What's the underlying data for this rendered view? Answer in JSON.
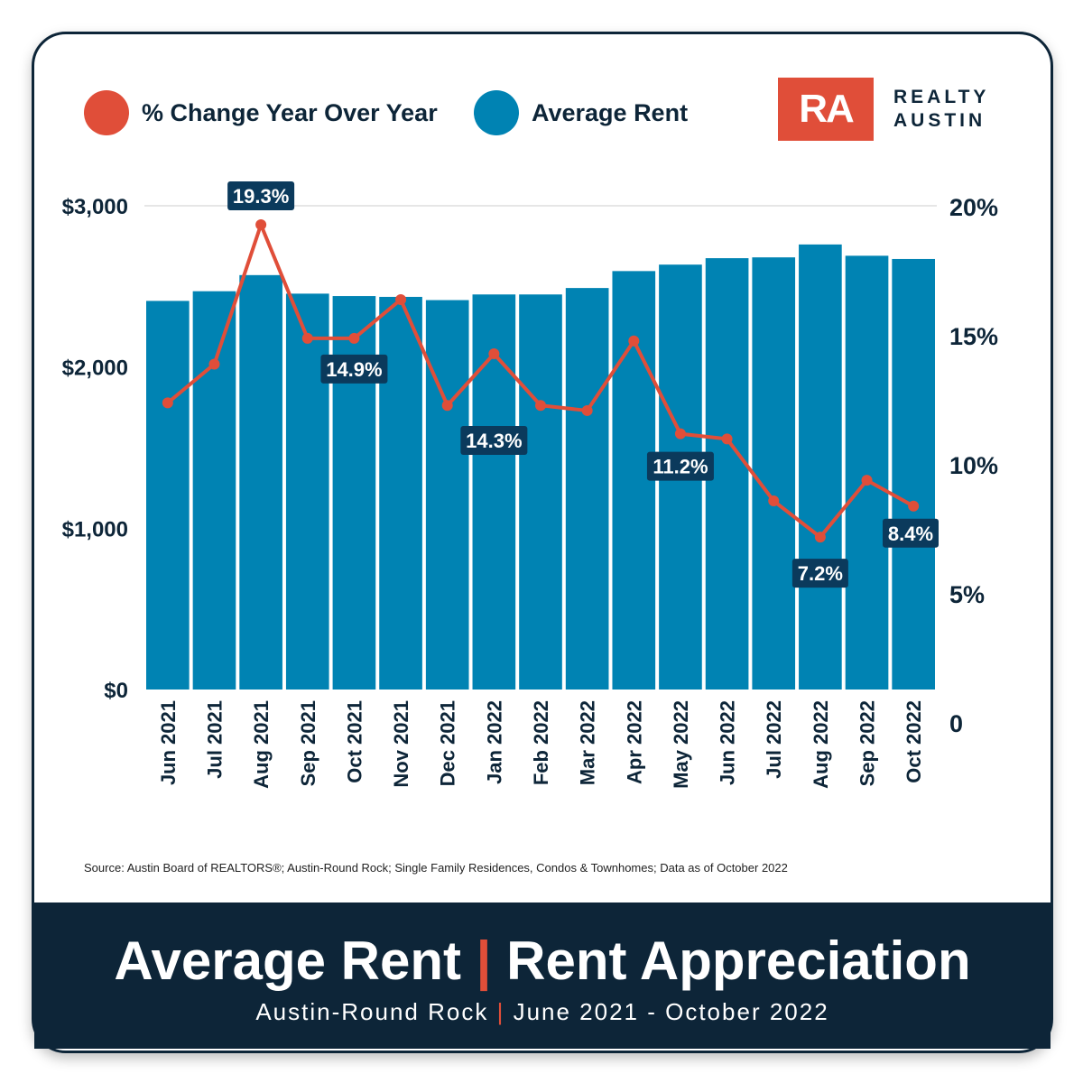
{
  "watermark": {
    "line1": "REALTY",
    "line2": "AUSTIN"
  },
  "legend": [
    {
      "label": "% Change Year Over Year",
      "color": "#e04e39"
    },
    {
      "label": "Average Rent",
      "color": "#0083b3"
    }
  ],
  "logo": {
    "mark": "RA",
    "line1": "REALTY",
    "line2": "AUSTIN"
  },
  "chart_data": {
    "type": "bar+line",
    "categories": [
      "Jun 2021",
      "Jul 2021",
      "Aug 2021",
      "Sep 2021",
      "Oct 2021",
      "Nov 2021",
      "Dec 2021",
      "Jan 2022",
      "Feb 2022",
      "Mar 2022",
      "Apr 2022",
      "May 2022",
      "Jun 2022",
      "Jul 2022",
      "Aug 2022",
      "Sep 2022",
      "Oct 2022"
    ],
    "series": [
      {
        "name": "Average Rent",
        "type": "bar",
        "axis": "left",
        "color": "#0083b3",
        "values": [
          2410,
          2470,
          2570,
          2455,
          2440,
          2435,
          2415,
          2450,
          2450,
          2490,
          2595,
          2635,
          2675,
          2680,
          2760,
          2690,
          2670
        ]
      },
      {
        "name": "% Change Year Over Year",
        "type": "line",
        "axis": "right",
        "color": "#e04e39",
        "values": [
          12.4,
          13.9,
          19.3,
          14.9,
          14.9,
          16.4,
          12.3,
          14.3,
          12.3,
          12.1,
          14.8,
          11.2,
          11.0,
          8.6,
          7.2,
          9.4,
          8.4
        ]
      }
    ],
    "left_axis": {
      "ylim": [
        0,
        3000
      ],
      "ticks": [
        "$0",
        "$1,000",
        "$2,000",
        "$3,000"
      ],
      "tick_values": [
        0,
        1000,
        2000,
        3000
      ]
    },
    "right_axis": {
      "ylim": [
        0,
        20
      ],
      "ticks": [
        "0",
        "5%",
        "10%",
        "15%",
        "20%"
      ],
      "tick_values": [
        0,
        5,
        10,
        15,
        20
      ]
    },
    "data_labels": [
      {
        "index": 2,
        "text": "19.3%"
      },
      {
        "index": 4,
        "text": "14.9%"
      },
      {
        "index": 7,
        "text": "14.3%"
      },
      {
        "index": 11,
        "text": "11.2%"
      },
      {
        "index": 14,
        "text": "7.2%"
      },
      {
        "index": 16,
        "text": "8.4%"
      }
    ],
    "label_color": "#0b3a5c",
    "grid": "top line only",
    "legend_position": "top-left"
  },
  "source": "Source: Austin Board of REALTORS®; Austin-Round Rock; Single Family Residences, Condos & Townhomes; Data as of October  2022",
  "footer": {
    "title_left": "Average Rent",
    "separator": "|",
    "title_right": "Rent Appreciation",
    "sub_left": "Austin-Round Rock",
    "sub_right": "June 2021 - October 2022",
    "bg": "#0d2538"
  }
}
